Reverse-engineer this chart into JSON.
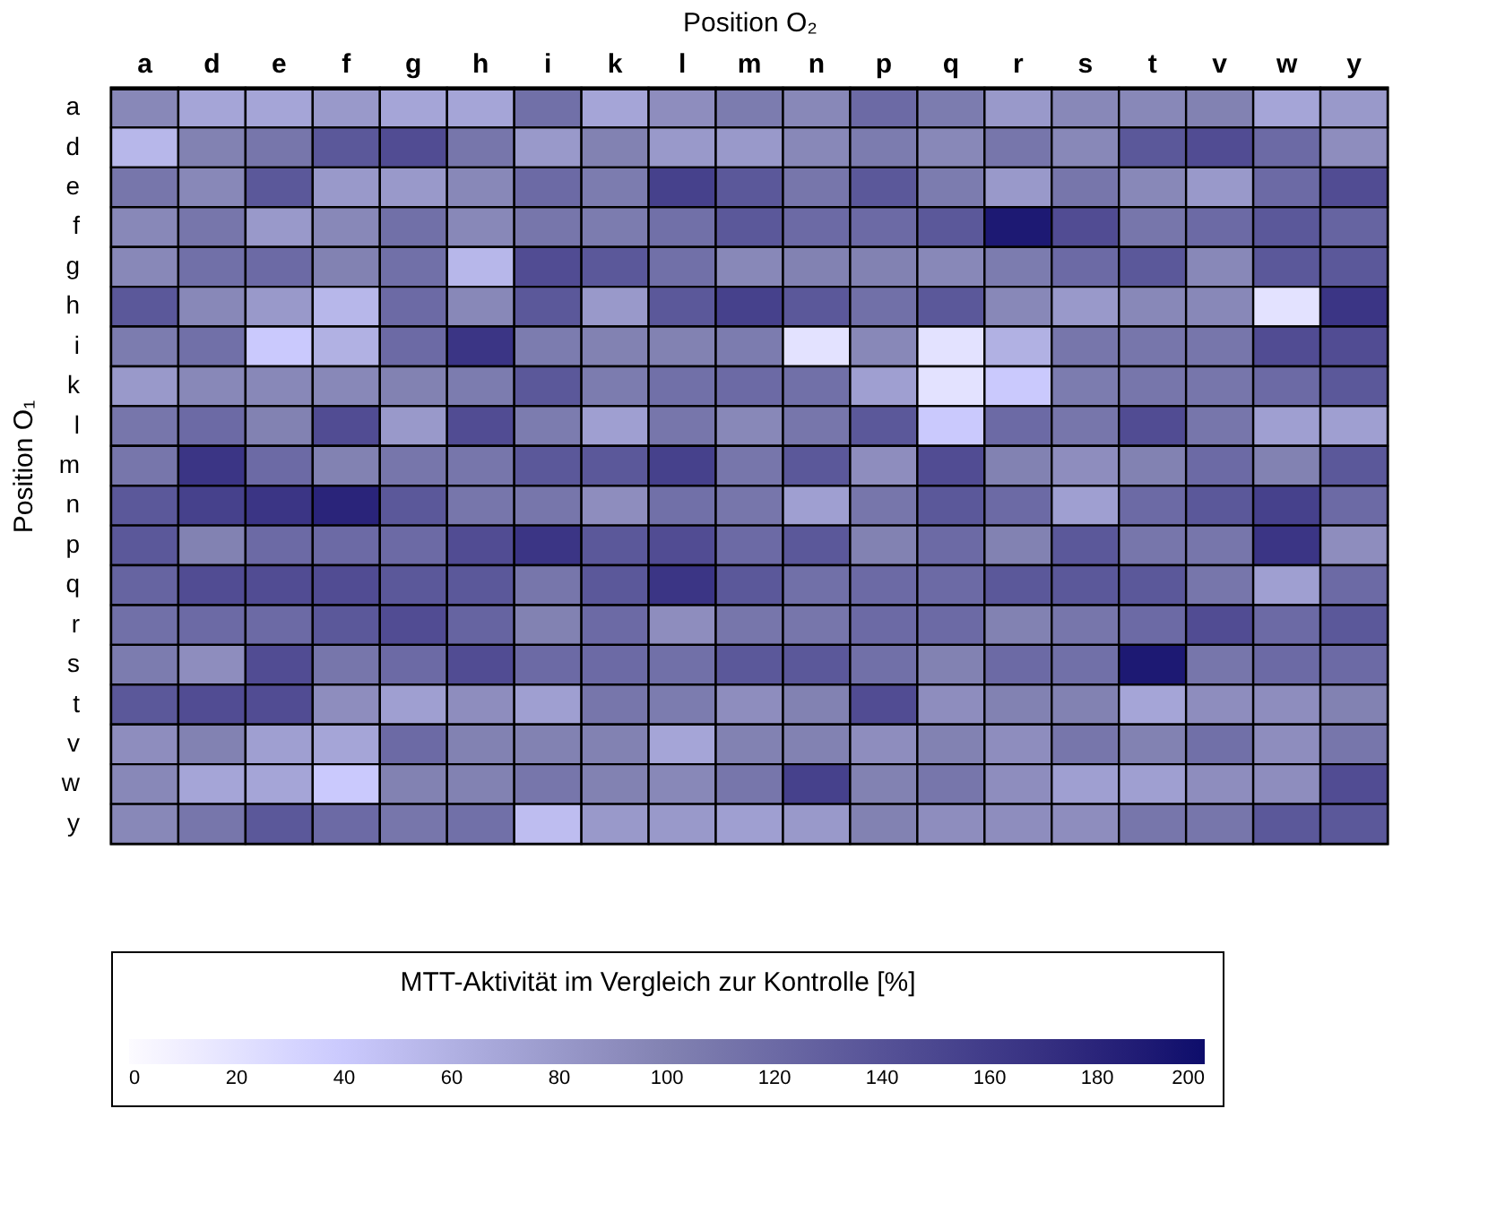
{
  "chart_data": {
    "type": "heatmap",
    "xlabel": "Position O₂",
    "ylabel": "Position O₁",
    "clabel": "MTT-Aktivität im Vergleich zur Kontrolle [%]",
    "categories": [
      "a",
      "d",
      "e",
      "f",
      "g",
      "h",
      "i",
      "k",
      "l",
      "m",
      "n",
      "p",
      "q",
      "r",
      "s",
      "t",
      "v",
      "w",
      "y"
    ],
    "y_categories": [
      "a",
      "d",
      "e",
      "f",
      "g",
      "h",
      "i",
      "k",
      "l",
      "m",
      "n",
      "p",
      "q",
      "r",
      "s",
      "t",
      "v",
      "w",
      "y"
    ],
    "cells": [
      [
        95,
        70,
        70,
        80,
        70,
        70,
        115,
        70,
        90,
        105,
        95,
        120,
        105,
        80,
        95,
        95,
        100,
        70,
        80
      ],
      [
        55,
        100,
        110,
        135,
        145,
        110,
        80,
        100,
        80,
        80,
        95,
        105,
        95,
        110,
        95,
        135,
        145,
        120,
        90
      ],
      [
        110,
        95,
        135,
        80,
        80,
        95,
        120,
        105,
        155,
        135,
        110,
        135,
        105,
        80,
        110,
        95,
        80,
        120,
        145
      ],
      [
        95,
        110,
        80,
        95,
        115,
        95,
        110,
        105,
        115,
        135,
        120,
        120,
        135,
        190,
        145,
        110,
        120,
        135,
        125
      ],
      [
        95,
        115,
        120,
        100,
        115,
        55,
        145,
        135,
        115,
        95,
        100,
        100,
        95,
        105,
        120,
        135,
        95,
        135,
        135
      ],
      [
        135,
        95,
        80,
        55,
        120,
        95,
        135,
        80,
        135,
        155,
        135,
        115,
        135,
        95,
        80,
        95,
        95,
        20,
        165
      ],
      [
        105,
        115,
        40,
        60,
        120,
        165,
        105,
        100,
        100,
        105,
        20,
        95,
        20,
        60,
        110,
        110,
        110,
        145,
        145
      ],
      [
        80,
        95,
        95,
        95,
        100,
        105,
        135,
        105,
        115,
        120,
        115,
        75,
        20,
        40,
        105,
        110,
        110,
        120,
        135
      ],
      [
        110,
        120,
        100,
        145,
        80,
        145,
        105,
        75,
        110,
        95,
        110,
        135,
        40,
        120,
        110,
        145,
        110,
        75,
        75
      ],
      [
        110,
        165,
        120,
        100,
        110,
        110,
        135,
        135,
        155,
        110,
        135,
        90,
        145,
        100,
        90,
        100,
        120,
        100,
        135
      ],
      [
        135,
        155,
        165,
        180,
        135,
        110,
        110,
        90,
        115,
        110,
        75,
        110,
        135,
        120,
        75,
        120,
        135,
        155,
        120
      ],
      [
        135,
        100,
        120,
        120,
        120,
        145,
        165,
        135,
        145,
        120,
        135,
        100,
        120,
        100,
        135,
        110,
        110,
        165,
        90
      ],
      [
        125,
        145,
        145,
        145,
        135,
        135,
        110,
        135,
        165,
        135,
        115,
        120,
        120,
        135,
        135,
        135,
        110,
        75,
        120
      ],
      [
        115,
        120,
        120,
        135,
        145,
        125,
        100,
        120,
        90,
        110,
        110,
        120,
        120,
        100,
        110,
        120,
        145,
        120,
        135
      ],
      [
        105,
        90,
        145,
        110,
        120,
        145,
        120,
        120,
        115,
        135,
        135,
        115,
        100,
        120,
        115,
        190,
        110,
        120,
        120
      ],
      [
        135,
        145,
        145,
        90,
        75,
        90,
        75,
        110,
        105,
        90,
        100,
        145,
        90,
        100,
        100,
        70,
        90,
        90,
        100
      ],
      [
        90,
        100,
        75,
        70,
        120,
        100,
        100,
        100,
        70,
        100,
        100,
        90,
        100,
        90,
        110,
        100,
        115,
        90,
        110
      ],
      [
        95,
        70,
        70,
        40,
        100,
        100,
        110,
        100,
        95,
        110,
        155,
        100,
        110,
        90,
        75,
        75,
        90,
        90,
        145
      ],
      [
        95,
        110,
        135,
        120,
        110,
        115,
        50,
        80,
        80,
        75,
        80,
        100,
        90,
        90,
        90,
        110,
        110,
        135,
        135
      ]
    ],
    "clim": [
      0,
      200
    ],
    "cticks": [
      0,
      20,
      40,
      60,
      80,
      100,
      120,
      140,
      160,
      180,
      200
    ]
  }
}
